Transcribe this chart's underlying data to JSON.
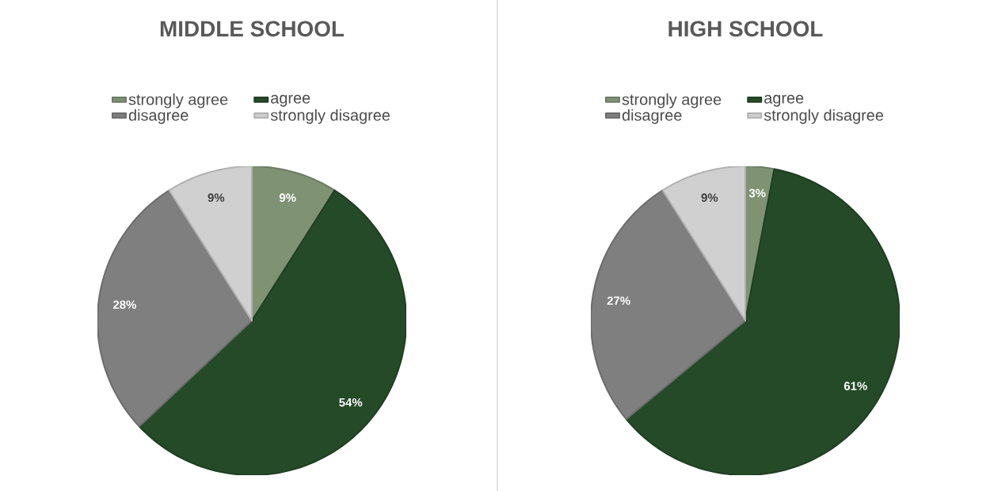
{
  "chart_data": [
    {
      "type": "pie",
      "title": "MIDDLE SCHOOL",
      "categories": [
        "strongly agree",
        "agree",
        "disagree",
        "strongly disagree"
      ],
      "values": [
        9,
        54,
        28,
        9
      ],
      "colors": [
        "#7f9274",
        "#254a28",
        "#7f7f7f",
        "#d0d0d0"
      ],
      "value_labels": [
        "9%",
        "54%",
        "28%",
        "9%"
      ],
      "legend": "top"
    },
    {
      "type": "pie",
      "title": "HIGH SCHOOL",
      "categories": [
        "strongly agree",
        "agree",
        "disagree",
        "strongly disagree"
      ],
      "values": [
        3,
        61,
        27,
        9
      ],
      "colors": [
        "#7f9274",
        "#254a28",
        "#7f7f7f",
        "#d0d0d0"
      ],
      "value_labels": [
        "3%",
        "61%",
        "27%",
        "9%"
      ],
      "legend": "top"
    }
  ]
}
